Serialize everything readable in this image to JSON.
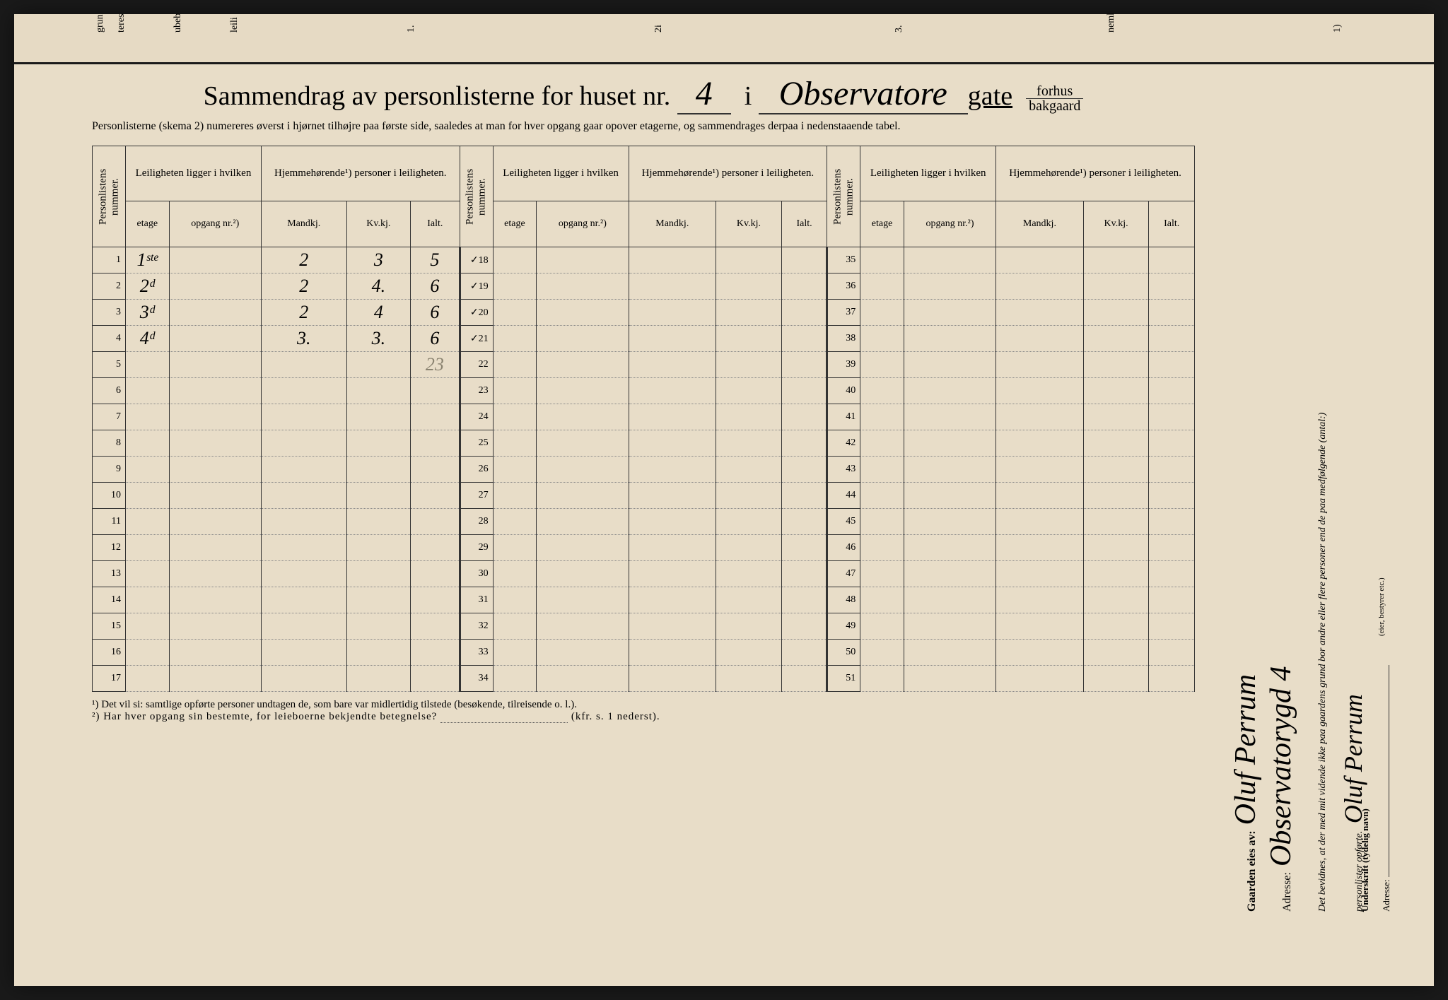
{
  "topLabels": [
    "grun",
    "teres",
    "ubeb",
    "leili",
    "1.",
    "2i",
    "3.",
    "neml",
    "1)"
  ],
  "title": {
    "pre": "Sammendrag av personlisterne for huset nr.",
    "houseNo": "4",
    "i": "i",
    "street": "Observatore",
    "gate": "gate",
    "forhus": "forhus",
    "bakgaard": "bakgaard"
  },
  "instr": "Personlisterne (skema 2) numereres øverst i hjørnet tilhøjre paa første side, saaledes at man for hver opgang gaar opover etagerne, og sammendrages derpaa i nedenstaaende tabel.",
  "headers": {
    "personlistens": "Personlistens nummer.",
    "leiligheten": "Leiligheten ligger i hvilken",
    "hjemme": "Hjemmehørende¹) personer i leiligheten.",
    "etage": "etage",
    "opgang": "opgang nr.²)",
    "mandkj": "Mandkj.",
    "kvkj": "Kv.kj.",
    "ialt": "Ialt."
  },
  "rows": [
    {
      "n": "1",
      "etage": "1ˢᵗᵉ",
      "opg": "",
      "m": "2",
      "k": "3",
      "i": "5",
      "mark": "✓18"
    },
    {
      "n": "2",
      "etage": "2ᵈ",
      "opg": "",
      "m": "2",
      "k": "4.",
      "i": "6",
      "mark": "✓19"
    },
    {
      "n": "3",
      "etage": "3ᵈ",
      "opg": "",
      "m": "2",
      "k": "4",
      "i": "6",
      "mark": "✓20"
    },
    {
      "n": "4",
      "etage": "4ᵈ",
      "opg": "",
      "m": "3.",
      "k": "3.",
      "i": "6",
      "mark": "✓21"
    },
    {
      "n": "5",
      "etage": "",
      "opg": "",
      "m": "",
      "k": "",
      "i": "23",
      "mark": "22",
      "pencil": true
    },
    {
      "n": "6",
      "mark": "23"
    },
    {
      "n": "7",
      "mark": "24"
    },
    {
      "n": "8",
      "mark": "25"
    },
    {
      "n": "9",
      "mark": "26"
    },
    {
      "n": "10",
      "mark": "27"
    },
    {
      "n": "11",
      "mark": "28"
    },
    {
      "n": "12",
      "mark": "29"
    },
    {
      "n": "13",
      "mark": "30"
    },
    {
      "n": "14",
      "mark": "31"
    },
    {
      "n": "15",
      "mark": "32"
    },
    {
      "n": "16",
      "mark": "33"
    },
    {
      "n": "17",
      "mark": "34"
    }
  ],
  "col2start": 35,
  "footnotes": {
    "f1": "¹) Det vil si: samtlige opførte personer undtagen de, som bare var midlertidig tilstede (besøkende, tilreisende o. l.).",
    "f2": "²) Har hver opgang sin bestemte, for leieboerne bekjendte betegnelse?",
    "kfr": "(kfr. s. 1 nederst)."
  },
  "side": {
    "gaarden": "Gaarden eies av:",
    "bevidnes": "Det bevidnes, at der med mit vidende ikke paa gaardens grund bor andre eller flere personer end de paa medfølgende (antal:)",
    "personlister": "personlister opførte.",
    "underskrift": "Underskrift (tydelig navn)",
    "eier": "(eier, bestyrer etc.)",
    "adresse": "Adresse:",
    "sig1": "Oluf Perrum",
    "sig2": "Oluf Perrum",
    "addr": "Observatorygd 4"
  }
}
